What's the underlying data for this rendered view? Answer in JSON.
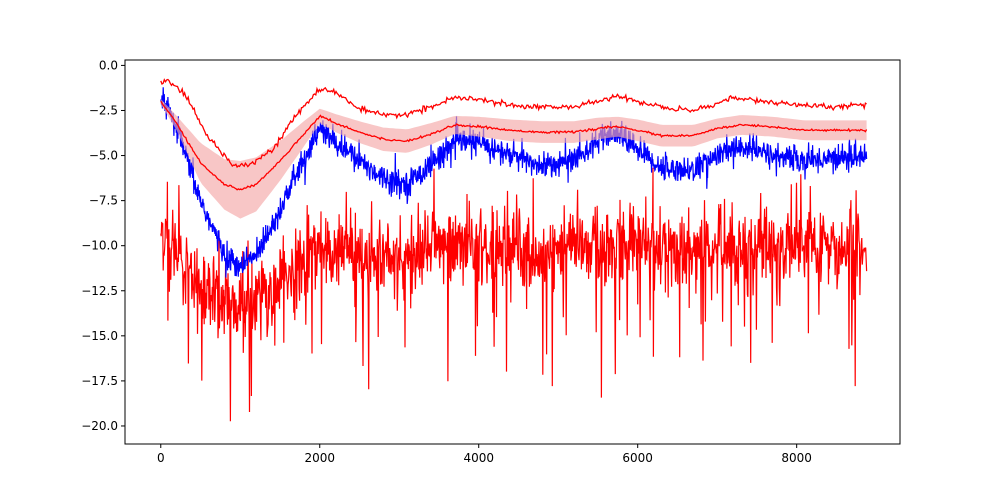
{
  "chart_data": {
    "type": "line",
    "title": "",
    "xlabel": "",
    "ylabel": "",
    "xlim": [
      -450,
      9300
    ],
    "ylim": [
      -21.0,
      0.3
    ],
    "x_ticks": [
      0,
      2000,
      4000,
      6000,
      8000
    ],
    "x_tick_labels": [
      "0",
      "2000",
      "4000",
      "6000",
      "8000"
    ],
    "y_ticks": [
      0.0,
      -2.5,
      -5.0,
      -7.5,
      -10.0,
      -12.5,
      -15.0,
      -17.5,
      -20.0
    ],
    "y_tick_labels": [
      "0.0",
      "−2.5",
      "−5.0",
      "−7.5",
      "−10.0",
      "−12.5",
      "−15.0",
      "−17.5",
      "−20.0"
    ],
    "grid": false,
    "legend": "none",
    "x_max": 8880,
    "series": [
      {
        "style": "red-noisy-band",
        "color": "#ff0000",
        "x": [
          0,
          200,
          500,
          800,
          1000,
          1200,
          1500,
          1800,
          2000,
          2300,
          2700,
          3000,
          3500,
          3800,
          4200,
          4700,
          5200,
          5700,
          6200,
          6700,
          7200,
          7700,
          8200,
          8880
        ],
        "values": [
          -9.0,
          -10.5,
          -12.0,
          -13.0,
          -13.5,
          -13.0,
          -12.0,
          -11.0,
          -10.3,
          -10.5,
          -10.7,
          -10.8,
          -10.3,
          -10.0,
          -10.2,
          -10.4,
          -10.2,
          -10.0,
          -10.3,
          -10.4,
          -10.2,
          -10.1,
          -10.2,
          -10.3
        ],
        "spread": 1.9
      },
      {
        "style": "blue-noisy",
        "color": "#0000ff",
        "x": [
          0,
          200,
          500,
          800,
          1000,
          1200,
          1500,
          1800,
          2000,
          2200,
          2500,
          2800,
          3100,
          3400,
          3700,
          4000,
          4400,
          4800,
          5200,
          5500,
          5750,
          6000,
          6300,
          6700,
          7000,
          7300,
          7700,
          8100,
          8500,
          8880
        ],
        "values": [
          -1.7,
          -3.5,
          -7.5,
          -10.5,
          -11.2,
          -10.5,
          -8.0,
          -5.2,
          -3.5,
          -4.3,
          -5.3,
          -6.2,
          -6.6,
          -5.5,
          -4.2,
          -4.3,
          -5.0,
          -5.6,
          -5.2,
          -4.2,
          -3.8,
          -4.6,
          -5.7,
          -5.8,
          -5.0,
          -4.5,
          -5.0,
          -5.3,
          -5.1,
          -5.0
        ],
        "spread": 0.6
      },
      {
        "style": "red-mean-with-band",
        "color": "#ff0000",
        "fill": "#f4a8a8",
        "x": [
          0,
          200,
          500,
          800,
          1000,
          1200,
          1500,
          1800,
          2000,
          2200,
          2500,
          2800,
          3100,
          3400,
          3700,
          4000,
          4400,
          4800,
          5200,
          5500,
          5750,
          6000,
          6300,
          6700,
          7000,
          7300,
          7700,
          8100,
          8500,
          8880
        ],
        "values": [
          -2.0,
          -3.2,
          -5.4,
          -6.6,
          -6.9,
          -6.6,
          -5.3,
          -3.8,
          -2.8,
          -3.2,
          -3.7,
          -4.1,
          -4.2,
          -3.8,
          -3.3,
          -3.4,
          -3.6,
          -3.7,
          -3.7,
          -3.5,
          -3.4,
          -3.6,
          -3.9,
          -3.9,
          -3.5,
          -3.3,
          -3.4,
          -3.6,
          -3.6,
          -3.6
        ],
        "band_halfwidth": [
          0.15,
          0.4,
          1.1,
          1.4,
          1.6,
          1.5,
          1.1,
          0.7,
          0.4,
          0.5,
          0.6,
          0.65,
          0.65,
          0.6,
          0.5,
          0.55,
          0.6,
          0.6,
          0.6,
          0.6,
          0.55,
          0.6,
          0.6,
          0.6,
          0.55,
          0.55,
          0.55,
          0.55,
          0.55,
          0.55
        ]
      },
      {
        "style": "red-upper-thin",
        "color": "#ff0000",
        "x": [
          0,
          100,
          300,
          600,
          900,
          1100,
          1400,
          1700,
          2000,
          2200,
          2500,
          2800,
          3100,
          3400,
          3700,
          4000,
          4400,
          4800,
          5200,
          5500,
          5700,
          6000,
          6400,
          6700,
          7000,
          7200,
          7600,
          8000,
          8400,
          8880
        ],
        "values": [
          -0.95,
          -0.9,
          -1.6,
          -4.0,
          -5.5,
          -5.5,
          -4.7,
          -2.8,
          -1.3,
          -1.5,
          -2.4,
          -2.8,
          -2.7,
          -2.3,
          -1.8,
          -1.9,
          -2.2,
          -2.3,
          -2.3,
          -2.0,
          -1.7,
          -2.0,
          -2.4,
          -2.5,
          -2.1,
          -1.8,
          -2.0,
          -2.2,
          -2.3,
          -2.2
        ],
        "spread": 0.12
      }
    ]
  }
}
